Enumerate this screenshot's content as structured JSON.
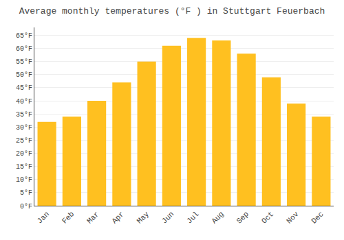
{
  "chart_data": {
    "type": "bar",
    "title": "Average monthly temperatures (°F ) in Stuttgart Feuerbach",
    "categories": [
      "Jan",
      "Feb",
      "Mar",
      "Apr",
      "May",
      "Jun",
      "Jul",
      "Aug",
      "Sep",
      "Oct",
      "Nov",
      "Dec"
    ],
    "values": [
      32,
      34,
      40,
      47,
      55,
      61,
      64,
      63,
      58,
      49,
      39,
      34
    ],
    "color": "#FFC020",
    "ylim": [
      0,
      68
    ],
    "yticks": [
      {
        "value": 0,
        "label": "0°F"
      },
      {
        "value": 5,
        "label": "5°F"
      },
      {
        "value": 10,
        "label": "10°F"
      },
      {
        "value": 15,
        "label": "15°F"
      },
      {
        "value": 20,
        "label": "20°F"
      },
      {
        "value": 25,
        "label": "25°F"
      },
      {
        "value": 30,
        "label": "30°F"
      },
      {
        "value": 35,
        "label": "35°F"
      },
      {
        "value": 40,
        "label": "40°F"
      },
      {
        "value": 45,
        "label": "45°F"
      },
      {
        "value": 50,
        "label": "50°F"
      },
      {
        "value": 55,
        "label": "55°F"
      },
      {
        "value": 60,
        "label": "60°F"
      },
      {
        "value": 65,
        "label": "65°F"
      }
    ],
    "grid": true
  }
}
